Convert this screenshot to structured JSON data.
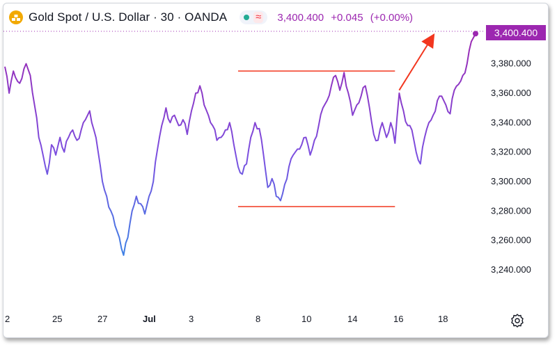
{
  "header": {
    "title": "Gold Spot / U.S. Dollar · 30 · OANDA",
    "approx_symbol": "≈",
    "price": "3,400.400",
    "change": "+0.045",
    "change_pct": "(+0.00%)",
    "logo_icon": "gold-bars-icon",
    "status_icon": "market-open-dot-icon"
  },
  "price_tag": "3,400.400",
  "colors": {
    "line_top": "#9c27b0",
    "line_mid": "#7b4fe0",
    "line_bottom": "#2e8ee6",
    "annotation": "#f2361f",
    "price_accent": "#9c27b0"
  },
  "chart_data": {
    "type": "line",
    "title": "Gold Spot / U.S. Dollar · 30 · OANDA",
    "xlabel": "",
    "ylabel": "",
    "x_ticks": [
      "2",
      "25",
      "27",
      "Jul",
      "3",
      "8",
      "10",
      "14",
      "16",
      "18"
    ],
    "y_ticks": [
      3240,
      3260,
      3280,
      3300,
      3320,
      3340,
      3360,
      3380
    ],
    "y_tick_labels": [
      "3,240.000",
      "3,260.000",
      "3,280.000",
      "3,300.000",
      "3,320.000",
      "3,340.000",
      "3,360.000",
      "3,380.000"
    ],
    "ylim": [
      3232,
      3402
    ],
    "grid": false,
    "series": [
      {
        "values": [
          3378,
          3360,
          3375,
          3368,
          3370,
          3380,
          3372,
          3352,
          3330,
          3318,
          3305,
          3325,
          3318,
          3330,
          3320,
          3330,
          3335,
          3328,
          3335,
          3342,
          3348,
          3335,
          3320,
          3300,
          3290,
          3280,
          3270,
          3262,
          3250,
          3262,
          3280,
          3290,
          3285,
          3278,
          3290,
          3300,
          3322,
          3338,
          3350,
          3340,
          3345,
          3338,
          3342,
          3332,
          3348,
          3360,
          3365,
          3352,
          3345,
          3338,
          3328,
          3330,
          3335,
          3340,
          3325,
          3310,
          3305,
          3312,
          3330,
          3340,
          3336,
          3318,
          3296,
          3302,
          3290,
          3287,
          3298,
          3310,
          3318,
          3322,
          3325,
          3330,
          3318,
          3328,
          3338,
          3350,
          3355,
          3365,
          3372,
          3362,
          3374,
          3360,
          3345,
          3352,
          3358,
          3365,
          3350,
          3332,
          3328,
          3340,
          3330,
          3340,
          3326,
          3360,
          3348,
          3338,
          3335,
          3320,
          3312,
          3330,
          3340,
          3345,
          3355,
          3358,
          3352,
          3346,
          3362,
          3366,
          3372,
          3380,
          3395,
          3400.4
        ]
      }
    ],
    "current_price": 3400.4,
    "annotations": [
      {
        "type": "hline",
        "y": 3375,
        "x_start": 55,
        "x_end": 92
      },
      {
        "type": "hline",
        "y": 3283,
        "x_start": 55,
        "x_end": 92
      },
      {
        "type": "arrow",
        "from": [
          93,
          3362
        ],
        "to": [
          101,
          3399
        ]
      }
    ]
  }
}
